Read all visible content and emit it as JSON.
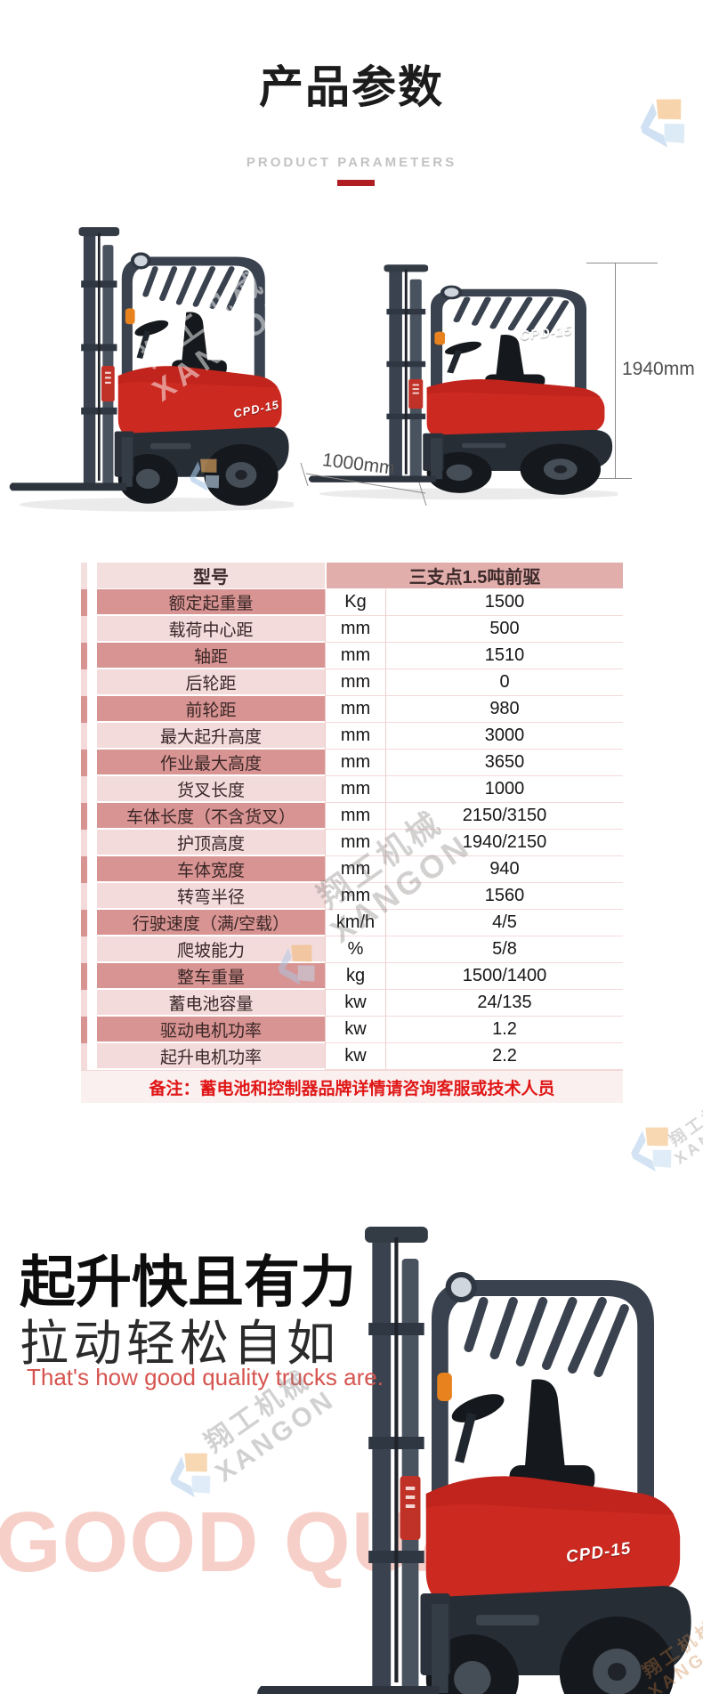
{
  "header": {
    "title": "产品参数",
    "subtitle": "PRODUCT PARAMETERS",
    "accent_color": "#b01e23"
  },
  "photos": {
    "left_model_label": "CPD-15",
    "right_model_label": "CPD-15",
    "height_dimension": "1940mm",
    "length_dimension": "1000mm"
  },
  "table": {
    "header_label": "型号",
    "header_value": "三支点1.5吨前驱",
    "rows": [
      {
        "label": "额定起重量",
        "unit": "Kg",
        "value": "1500"
      },
      {
        "label": "载荷中心距",
        "unit": "mm",
        "value": "500"
      },
      {
        "label": "轴距",
        "unit": "mm",
        "value": "1510"
      },
      {
        "label": "后轮距",
        "unit": "mm",
        "value": "0"
      },
      {
        "label": "前轮距",
        "unit": "mm",
        "value": "980"
      },
      {
        "label": "最大起升高度",
        "unit": "mm",
        "value": "3000"
      },
      {
        "label": "作业最大高度",
        "unit": "mm",
        "value": "3650"
      },
      {
        "label": "货叉长度",
        "unit": "mm",
        "value": "1000"
      },
      {
        "label": "车体长度（不含货叉）",
        "unit": "mm",
        "value": "2150/3150"
      },
      {
        "label": "护顶高度",
        "unit": "mm",
        "value": "1940/2150"
      },
      {
        "label": "车体宽度",
        "unit": "mm",
        "value": "940"
      },
      {
        "label": "转弯半径",
        "unit": "mm",
        "value": "1560"
      },
      {
        "label": "行驶速度（满/空载）",
        "unit": "km/h",
        "value": "4/5"
      },
      {
        "label": "爬坡能力",
        "unit": "%",
        "value": "5/8"
      },
      {
        "label": "整车重量",
        "unit": "kg",
        "value": "1500/1400"
      },
      {
        "label": "蓄电池容量",
        "unit": "kw",
        "value": "24/135"
      },
      {
        "label": "驱动电机功率",
        "unit": "kw",
        "value": "1.2"
      },
      {
        "label": "起升电机功率",
        "unit": "kw",
        "value": "2.2"
      }
    ],
    "remark": "备注：蓄电池和控制器品牌详情请咨询客服或技术人员",
    "colors": {
      "label_dark": "#d89492",
      "label_light": "#f2dbda",
      "header_left": "#f3dfde",
      "header_right": "#e2aeac",
      "remark_text": "#e01717"
    }
  },
  "promo": {
    "heading": "起升快且有力",
    "subheading": "拉动轻松自如",
    "tagline": "That's how good quality trucks are.",
    "background_text": "GOOD QUALITY",
    "model_label": "CPD-15"
  },
  "watermark": {
    "brand_cn": "翔工机械",
    "brand_en": "XANGON"
  }
}
